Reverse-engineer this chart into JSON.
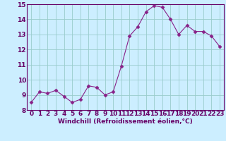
{
  "x": [
    0,
    1,
    2,
    3,
    4,
    5,
    6,
    7,
    8,
    9,
    10,
    11,
    12,
    13,
    14,
    15,
    16,
    17,
    18,
    19,
    20,
    21,
    22,
    23
  ],
  "y": [
    8.5,
    9.2,
    9.1,
    9.3,
    8.9,
    8.5,
    8.7,
    9.6,
    9.5,
    9.0,
    9.2,
    10.9,
    12.9,
    13.5,
    14.5,
    14.9,
    14.8,
    14.0,
    13.0,
    13.6,
    13.2,
    13.2,
    12.9,
    12.2
  ],
  "line_color": "#882288",
  "marker": "D",
  "marker_size": 2.5,
  "bg_color": "#cceeff",
  "grid_color": "#99cccc",
  "xlabel": "Windchill (Refroidissement éolien,°C)",
  "ylim": [
    8,
    15
  ],
  "xlim_min": -0.5,
  "xlim_max": 23.5,
  "yticks": [
    8,
    9,
    10,
    11,
    12,
    13,
    14,
    15
  ],
  "xticks": [
    0,
    1,
    2,
    3,
    4,
    5,
    6,
    7,
    8,
    9,
    10,
    11,
    12,
    13,
    14,
    15,
    16,
    17,
    18,
    19,
    20,
    21,
    22,
    23
  ],
  "xlabel_fontsize": 6.5,
  "tick_fontsize": 6.5,
  "label_color": "#660066"
}
